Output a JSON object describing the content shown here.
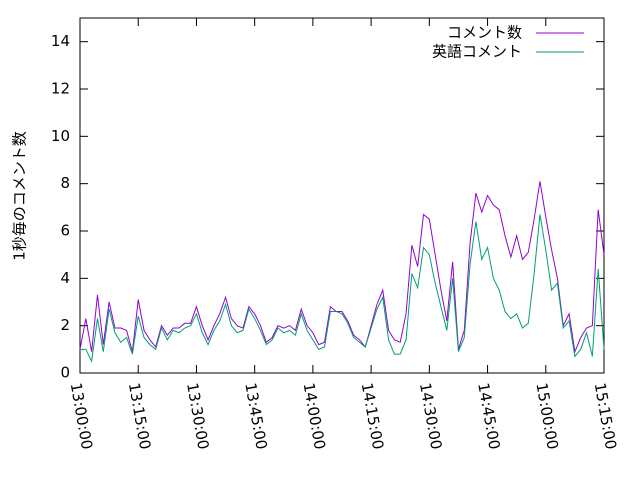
{
  "chart_data": {
    "type": "line",
    "ylabel": "1秒毎のコメント数",
    "x": [
      "13:00:00",
      "13:01:30",
      "13:03:00",
      "13:04:30",
      "13:06:00",
      "13:07:30",
      "13:09:00",
      "13:10:30",
      "13:12:00",
      "13:13:30",
      "13:15:00",
      "13:16:30",
      "13:18:00",
      "13:19:30",
      "13:21:00",
      "13:22:30",
      "13:24:00",
      "13:25:30",
      "13:27:00",
      "13:28:30",
      "13:30:00",
      "13:31:30",
      "13:33:00",
      "13:34:30",
      "13:36:00",
      "13:37:30",
      "13:39:00",
      "13:40:30",
      "13:42:00",
      "13:43:30",
      "13:45:00",
      "13:46:30",
      "13:48:00",
      "13:49:30",
      "13:51:00",
      "13:52:30",
      "13:54:00",
      "13:55:30",
      "13:57:00",
      "13:58:30",
      "14:00:00",
      "14:01:30",
      "14:03:00",
      "14:04:30",
      "14:06:00",
      "14:07:30",
      "14:09:00",
      "14:10:30",
      "14:12:00",
      "14:13:30",
      "14:15:00",
      "14:16:30",
      "14:18:00",
      "14:19:30",
      "14:21:00",
      "14:22:30",
      "14:24:00",
      "14:25:30",
      "14:27:00",
      "14:28:30",
      "14:30:00",
      "14:31:30",
      "14:33:00",
      "14:34:30",
      "14:36:00",
      "14:37:30",
      "14:39:00",
      "14:40:30",
      "14:42:00",
      "14:43:30",
      "14:45:00",
      "14:46:30",
      "14:48:00",
      "14:49:30",
      "14:51:00",
      "14:52:30",
      "14:54:00",
      "14:55:30",
      "14:57:00",
      "14:58:30",
      "15:00:00",
      "15:01:30",
      "15:03:00",
      "15:04:30",
      "15:06:00",
      "15:07:30",
      "15:09:00",
      "15:10:30",
      "15:12:00",
      "15:13:30",
      "15:15:00"
    ],
    "series": [
      {
        "name": "コメント数",
        "color": "#9400d3",
        "values": [
          1.0,
          2.3,
          0.9,
          3.3,
          1.2,
          3.0,
          1.9,
          1.9,
          1.8,
          0.9,
          3.1,
          1.8,
          1.4,
          1.1,
          2.0,
          1.6,
          1.9,
          1.9,
          2.1,
          2.1,
          2.8,
          2.0,
          1.4,
          2.0,
          2.5,
          3.2,
          2.3,
          2.0,
          1.9,
          2.8,
          2.5,
          2.0,
          1.3,
          1.5,
          2.0,
          1.9,
          2.0,
          1.8,
          2.7,
          2.0,
          1.7,
          1.2,
          1.3,
          2.8,
          2.6,
          2.6,
          2.2,
          1.6,
          1.4,
          1.1,
          2.0,
          2.9,
          3.5,
          1.8,
          1.4,
          1.3,
          2.5,
          5.4,
          4.5,
          6.7,
          6.5,
          5.0,
          3.5,
          2.2,
          4.7,
          1.0,
          1.8,
          5.5,
          7.6,
          6.8,
          7.5,
          7.1,
          6.9,
          5.8,
          4.9,
          5.8,
          4.8,
          5.1,
          6.5,
          8.1,
          6.6,
          5.2,
          4.0,
          2.0,
          2.5,
          0.9,
          1.5,
          1.9,
          2.0,
          6.9,
          5.0
        ]
      },
      {
        "name": "英語コメント",
        "color": "#009e73",
        "values": [
          1.0,
          1.0,
          0.5,
          2.3,
          0.9,
          2.7,
          1.7,
          1.3,
          1.5,
          0.8,
          2.4,
          1.5,
          1.2,
          1.0,
          1.9,
          1.4,
          1.8,
          1.7,
          1.9,
          2.0,
          2.5,
          1.7,
          1.2,
          1.8,
          2.2,
          2.9,
          2.0,
          1.7,
          1.8,
          2.7,
          2.3,
          1.8,
          1.2,
          1.4,
          1.9,
          1.7,
          1.8,
          1.6,
          2.5,
          1.8,
          1.4,
          1.0,
          1.1,
          2.6,
          2.6,
          2.5,
          2.1,
          1.5,
          1.3,
          1.1,
          1.9,
          2.7,
          3.2,
          1.4,
          0.8,
          0.8,
          1.4,
          4.2,
          3.6,
          5.3,
          5.0,
          3.8,
          2.8,
          1.8,
          4.0,
          0.9,
          1.5,
          4.6,
          6.4,
          4.8,
          5.3,
          4.0,
          3.5,
          2.6,
          2.3,
          2.5,
          1.9,
          2.1,
          4.2,
          6.7,
          5.2,
          3.5,
          3.8,
          1.9,
          2.2,
          0.7,
          1.0,
          1.7,
          0.7,
          4.4,
          1.0
        ]
      }
    ],
    "xlim": [
      "13:00:00",
      "15:15:00"
    ],
    "xticks": [
      "13:00:00",
      "13:15:00",
      "13:30:00",
      "13:45:00",
      "14:00:00",
      "14:15:00",
      "14:30:00",
      "14:45:00",
      "15:00:00",
      "15:15:00"
    ],
    "ylim": [
      0,
      15
    ],
    "yticks": [
      0,
      2,
      4,
      6,
      8,
      10,
      12,
      14
    ],
    "legend": "top-right"
  }
}
